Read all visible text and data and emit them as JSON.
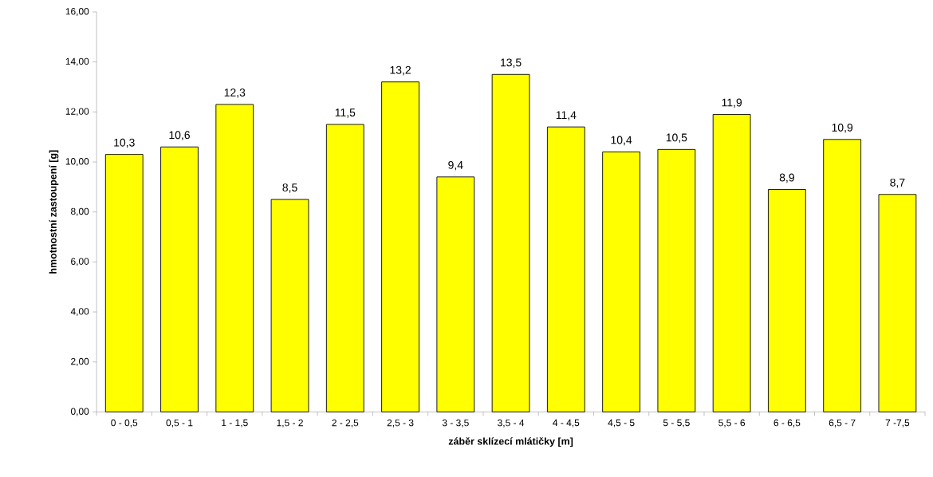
{
  "chart_data": {
    "type": "bar",
    "xlabel": "záběr sklízecí mlátičky [m]",
    "ylabel": "hmotnostní zastoupení [g]",
    "categories": [
      "0 - 0,5",
      "0,5 - 1",
      "1 - 1,5",
      "1,5 - 2",
      "2 - 2,5",
      "2,5 - 3",
      "3 - 3,5",
      "3,5 - 4",
      "4 - 4,5",
      "4,5 - 5",
      "5 - 5,5",
      "5,5 - 6",
      "6 - 6,5",
      "6,5 - 7",
      "7 -7,5"
    ],
    "values": [
      10.3,
      10.6,
      12.3,
      8.5,
      11.5,
      13.2,
      9.4,
      13.5,
      11.4,
      10.4,
      10.5,
      11.9,
      8.9,
      10.9,
      8.7
    ],
    "value_labels": [
      "10,3",
      "10,6",
      "12,3",
      "8,5",
      "11,5",
      "13,2",
      "9,4",
      "13,5",
      "11,4",
      "10,4",
      "10,5",
      "11,9",
      "8,9",
      "10,9",
      "8,7"
    ],
    "color": "#ffff00",
    "ylim": [
      0,
      16
    ],
    "yticks": [
      {
        "value": 0,
        "label": "0,00"
      },
      {
        "value": 2,
        "label": "2,00"
      },
      {
        "value": 4,
        "label": "4,00"
      },
      {
        "value": 6,
        "label": "6,00"
      },
      {
        "value": 8,
        "label": "8,00"
      },
      {
        "value": 10,
        "label": "10,00"
      },
      {
        "value": 12,
        "label": "12,00"
      },
      {
        "value": 14,
        "label": "14,00"
      },
      {
        "value": 16,
        "label": "16,00"
      }
    ]
  }
}
